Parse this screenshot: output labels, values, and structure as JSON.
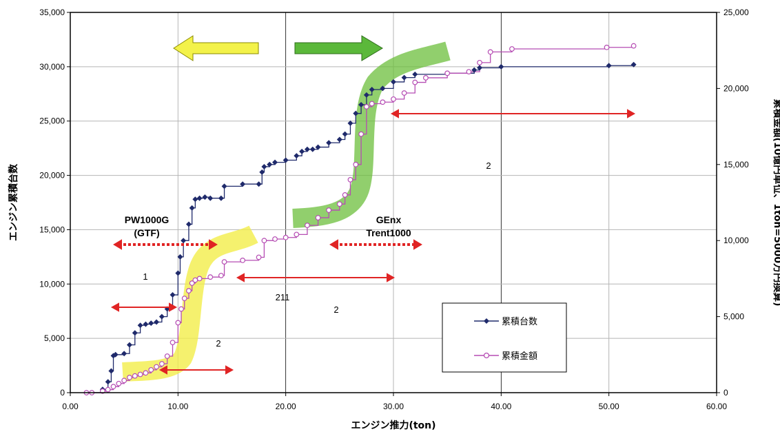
{
  "chart_data": {
    "type": "line",
    "xlabel": "エンジン推力(ton)",
    "ylabel": "エンジン累積台数",
    "y2label": "累積金額(10億円単位、1ton=5000万円換算)",
    "xlim": [
      0,
      60
    ],
    "ylim": [
      0,
      35000
    ],
    "y2lim": [
      0,
      25000
    ],
    "x_ticks": [
      "0.00",
      "10.00",
      "20.00",
      "30.00",
      "40.00",
      "50.00",
      "60.00"
    ],
    "y_ticks": [
      "0",
      "5,000",
      "10,000",
      "15,000",
      "20,000",
      "25,000",
      "30,000",
      "35,000"
    ],
    "y2_ticks": [
      "0",
      "5,000",
      "10,000",
      "15,000",
      "20,000",
      "25,000"
    ],
    "x_tick_values": [
      0,
      10,
      20,
      30,
      40,
      50,
      60
    ],
    "y_tick_values": [
      0,
      5000,
      10000,
      15000,
      20000,
      25000,
      30000,
      35000
    ],
    "y2_tick_values": [
      0,
      5000,
      10000,
      15000,
      20000,
      25000
    ],
    "grid": true,
    "legend_position": "bottom-right",
    "series": [
      {
        "name": "累積台数",
        "axis": "left",
        "color": "#1f2a6b",
        "marker": "diamond",
        "x": [
          1.5,
          2.0,
          3.0,
          3.5,
          3.8,
          4.0,
          4.2,
          5.0,
          5.5,
          6.0,
          6.5,
          7.0,
          7.5,
          8.0,
          8.5,
          9.0,
          9.5,
          10.0,
          10.2,
          10.5,
          11.0,
          11.3,
          11.6,
          12.0,
          12.5,
          13.0,
          14.0,
          14.3,
          16.0,
          17.5,
          17.8,
          18.0,
          18.5,
          19.0,
          20.0,
          21.0,
          21.5,
          22.0,
          22.5,
          23.0,
          24.0,
          25.0,
          25.5,
          26.0,
          26.5,
          27.0,
          27.5,
          28.0,
          29.0,
          30.0,
          31.0,
          32.0,
          35.0,
          37.5,
          38.0,
          40.0,
          50.0,
          52.3
        ],
        "y": [
          0,
          0,
          300,
          1000,
          2000,
          3400,
          3500,
          3600,
          4400,
          5500,
          6200,
          6300,
          6400,
          6500,
          7000,
          7700,
          9000,
          11000,
          12500,
          14000,
          15500,
          17000,
          17800,
          17900,
          18000,
          17900,
          17900,
          19000,
          19200,
          19200,
          20300,
          20800,
          21000,
          21200,
          21400,
          21800,
          22200,
          22400,
          22400,
          22600,
          23000,
          23300,
          23800,
          24800,
          25700,
          26500,
          27400,
          27900,
          28000,
          28600,
          29000,
          29300,
          29400,
          29700,
          29900,
          30000,
          30100,
          30200
        ]
      },
      {
        "name": "累積金額",
        "axis": "right",
        "color": "#b54cb3",
        "marker": "circle-open",
        "x": [
          1.5,
          2.0,
          3.0,
          3.5,
          4.0,
          4.5,
          5.0,
          5.5,
          6.0,
          6.5,
          7.0,
          7.5,
          8.0,
          8.5,
          9.0,
          9.5,
          10.0,
          10.3,
          10.6,
          11.0,
          11.3,
          11.6,
          12.0,
          13.0,
          14.0,
          14.3,
          16.0,
          17.5,
          18.0,
          19.0,
          20.0,
          21.0,
          22.0,
          23.0,
          24.0,
          25.0,
          25.5,
          26.0,
          26.5,
          27.0,
          27.5,
          28.0,
          29.0,
          30.0,
          31.0,
          32.0,
          33.0,
          35.0,
          37.0,
          38.0,
          39.0,
          41.0,
          49.8,
          52.3
        ],
        "y": [
          0,
          0,
          100,
          200,
          400,
          600,
          800,
          1000,
          1100,
          1200,
          1300,
          1500,
          1700,
          1900,
          2400,
          3300,
          4600,
          5500,
          6200,
          6700,
          7200,
          7400,
          7500,
          7600,
          7700,
          8600,
          8700,
          8900,
          10000,
          10100,
          10200,
          10400,
          11000,
          11500,
          12000,
          12400,
          13000,
          14000,
          15000,
          17000,
          18800,
          19000,
          19100,
          19300,
          19700,
          20400,
          20700,
          21000,
          21100,
          21700,
          22400,
          22600,
          22700,
          22800
        ]
      }
    ],
    "annotations": {
      "pw1000g_line1": "PW1000G",
      "pw1000g_line2": "(GTF)",
      "genx_line1": "GEnx",
      "genx_line2": "Trent1000",
      "label_1": "1",
      "label_211": "211",
      "label_2a": "2",
      "label_2b": "2",
      "label_2c": "2"
    }
  },
  "colors": {
    "series1": "#1f2a6b",
    "series2": "#b54cb3",
    "yellow_band": "#f2ee4a",
    "green_band": "#6cbf3c",
    "red_arrow": "#e02424",
    "yellow_arrow": "#f3f24a",
    "green_arrow": "#5bb83a"
  }
}
